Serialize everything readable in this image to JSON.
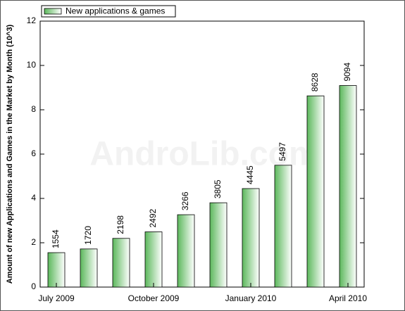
{
  "chart_data": {
    "type": "bar",
    "y_label": "Amount of new Applications and Games in the Market by Month (10^3)",
    "watermark": "AndroLib.com",
    "categories": [
      "July 2009",
      null,
      null,
      "October 2009",
      null,
      null,
      "January 2010",
      null,
      null,
      "April 2010"
    ],
    "series": [
      {
        "name": "New applications & games",
        "color": "#5cb85c",
        "values": [
          1.554,
          1.72,
          2.198,
          2.492,
          3.266,
          3.805,
          4.445,
          5.497,
          8.628,
          9.094
        ],
        "value_labels": [
          "1554",
          "1720",
          "2198",
          "2492",
          "3266",
          "3805",
          "4445",
          "5497",
          "8628",
          "9094"
        ]
      }
    ],
    "ylim": [
      0,
      12
    ],
    "yticks": [
      0,
      2,
      4,
      6,
      8,
      10,
      12
    ],
    "legend": "upper left"
  }
}
